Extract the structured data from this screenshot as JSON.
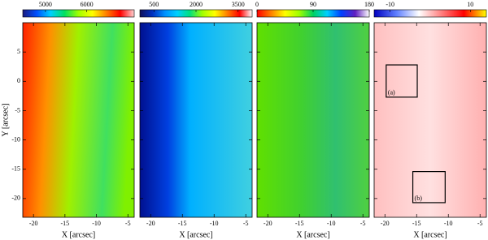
{
  "chart_data": [
    {
      "type": "heatmap",
      "xlabel": "X [arcsec]",
      "ylabel": "Y [arcsec]",
      "xlim": [
        -21.7,
        -4.0
      ],
      "xticks": [
        -20,
        -15,
        -10,
        -5
      ],
      "ylim": [
        -23.2,
        10
      ],
      "yticks": [
        5,
        0,
        -5,
        -10,
        -15,
        -20
      ],
      "clim": [
        4450,
        7150
      ],
      "cticks": [
        5000,
        6000
      ],
      "colors": [
        "#1a1a80",
        "#0050ff",
        "#00d0ff",
        "#00e060",
        "#a0ff00",
        "#ffff00",
        "#ff8000",
        "#ff0000",
        "#ffd0d0"
      ]
    },
    {
      "type": "heatmap",
      "xlabel": "X [arcsec]",
      "xlim": [
        -21.7,
        -4.0
      ],
      "xticks": [
        -20,
        -15,
        -10,
        -5
      ],
      "clim": [
        0,
        4000
      ],
      "cticks": [
        500,
        2000,
        3500
      ],
      "colors": [
        "#10105a",
        "#0030c0",
        "#0090ff",
        "#00d0ff",
        "#00e080",
        "#a0ff00",
        "#ffff00",
        "#ff8000",
        "#ff0000",
        "#ffffff"
      ]
    },
    {
      "type": "heatmap",
      "xlabel": "X [arcsec]",
      "xlim": [
        -21.7,
        -4.0
      ],
      "xticks": [
        -20,
        -15,
        -10,
        -5
      ],
      "clim": [
        0,
        180
      ],
      "cticks": [
        0,
        90,
        180
      ],
      "colors": [
        "#ff0000",
        "#ff8000",
        "#ffff00",
        "#a0ff00",
        "#00d060",
        "#00d0ff",
        "#0040ff",
        "#6020c0",
        "#ffffff"
      ]
    },
    {
      "type": "heatmap",
      "xlabel": "X [arcsec]",
      "xlim": [
        -21.7,
        -4.0
      ],
      "xticks": [
        -20,
        -15,
        -10,
        -5
      ],
      "clim": [
        -14,
        14
      ],
      "cticks": [
        -10,
        10
      ],
      "colors": [
        "#0000c0",
        "#6080ff",
        "#ffffff",
        "#ff8080",
        "#ff0000",
        "#ffff00"
      ],
      "annotations": [
        {
          "text": "(a)",
          "x": [
            -19.8,
            -14.9
          ],
          "y": [
            2.8,
            -2.7
          ]
        },
        {
          "text": "(b)",
          "x": [
            -15.6,
            -10.5
          ],
          "y": [
            -15.4,
            -20.7
          ]
        }
      ]
    }
  ]
}
